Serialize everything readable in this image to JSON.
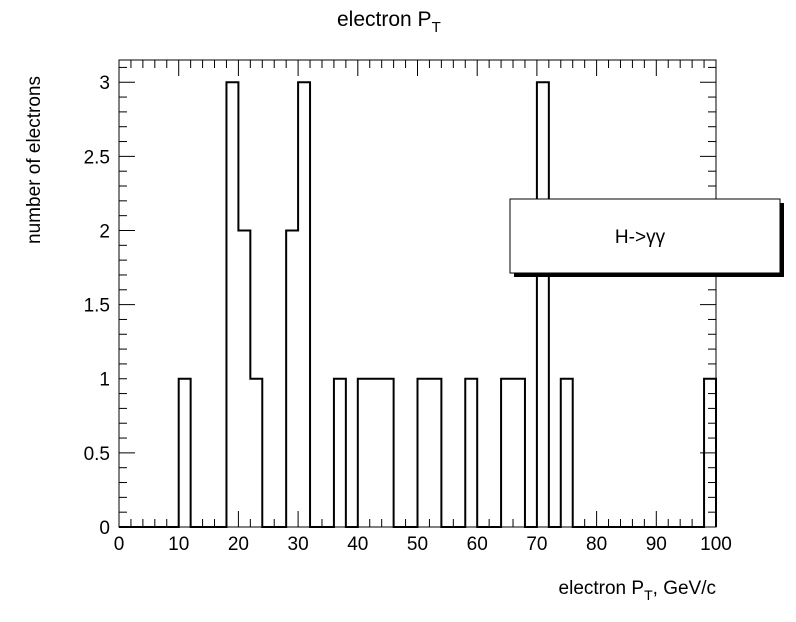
{
  "chart_data": {
    "type": "bar",
    "title": {
      "main": "electron P",
      "sub": "T"
    },
    "xlabel": {
      "main": "electron P",
      "sub": "T",
      "suffix": ", GeV/c"
    },
    "ylabel": "number of electrons",
    "xlim": [
      0,
      100
    ],
    "ylim": [
      0,
      3.15
    ],
    "bin_width": 2,
    "bin_edges_start": 0,
    "values": [
      0,
      0,
      0,
      0,
      0,
      1,
      0,
      0,
      0,
      3,
      2,
      1,
      0,
      0,
      2,
      3,
      0,
      0,
      1,
      0,
      1,
      1,
      1,
      0,
      0,
      1,
      1,
      0,
      0,
      1,
      0,
      0,
      1,
      1,
      0,
      3,
      0,
      1,
      0,
      0,
      0,
      0,
      0,
      0,
      0,
      0,
      0,
      0,
      0,
      1
    ],
    "x_ticks": [
      "0",
      "10",
      "20",
      "30",
      "40",
      "50",
      "60",
      "70",
      "80",
      "90",
      "100"
    ],
    "y_ticks": [
      "0",
      "0.5",
      "1",
      "1.5",
      "2",
      "2.5",
      "3"
    ],
    "legend": {
      "label": "H->γγ",
      "placement": "right"
    },
    "grid": false
  }
}
